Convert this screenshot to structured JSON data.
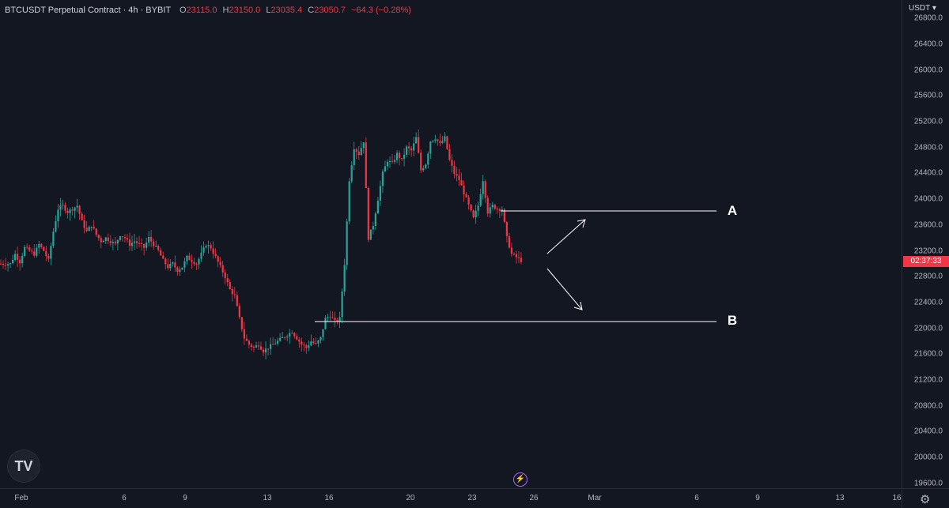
{
  "legend": {
    "symbol": "BTCUSDT Perpetual Contract · 4h · BYBIT",
    "o_key": "O",
    "o_val": "23115.0",
    "h_key": "H",
    "h_val": "23150.0",
    "l_key": "L",
    "l_val": "23035.4",
    "c_key": "C",
    "c_val": "23050.7",
    "change": "−64.3 (−0.28%)"
  },
  "price_axis": {
    "currency": "USDT ▾",
    "ticks": [
      "26800.0",
      "26400.0",
      "26000.0",
      "25600.0",
      "25200.0",
      "24800.0",
      "24400.0",
      "24000.0",
      "23600.0",
      "23200.0",
      "22800.0",
      "22400.0",
      "22000.0",
      "21600.0",
      "21200.0",
      "20800.0",
      "20400.0",
      "20000.0",
      "19600.0"
    ],
    "countdown": "02:37:33"
  },
  "time_axis": {
    "labels": [
      "Feb",
      "6",
      "9",
      "13",
      "16",
      "20",
      "23",
      "26",
      "Mar",
      "6",
      "9",
      "13",
      "16"
    ]
  },
  "annotations": {
    "a_label": "A",
    "b_label": "B"
  },
  "icons": {
    "logo": "tradingview-logo",
    "bolt": "lightning-icon",
    "settings": "gear-icon"
  },
  "colors": {
    "up": "#26a69a",
    "down": "#f23645",
    "background": "#131722"
  },
  "chart_data": {
    "type": "candlestick",
    "symbol": "BTCUSDT",
    "interval": "4h",
    "y_range": [
      19500,
      26900
    ],
    "levels": {
      "A": 23840,
      "B": 22130
    },
    "close_path": [
      [
        0,
        23000
      ],
      [
        4,
        23000
      ],
      [
        6,
        23150
      ],
      [
        8,
        23030
      ],
      [
        10,
        23250
      ],
      [
        12,
        23200
      ],
      [
        14,
        23150
      ],
      [
        16,
        23300
      ],
      [
        18,
        23200
      ],
      [
        20,
        23050
      ],
      [
        22,
        23500
      ],
      [
        24,
        23850
      ],
      [
        26,
        23900
      ],
      [
        28,
        23800
      ],
      [
        30,
        23850
      ],
      [
        32,
        23900
      ],
      [
        34,
        23650
      ],
      [
        36,
        23500
      ],
      [
        38,
        23600
      ],
      [
        40,
        23450
      ],
      [
        42,
        23350
      ],
      [
        44,
        23400
      ],
      [
        46,
        23350
      ],
      [
        48,
        23300
      ],
      [
        50,
        23450
      ],
      [
        52,
        23400
      ],
      [
        54,
        23300
      ],
      [
        56,
        23350
      ],
      [
        58,
        23300
      ],
      [
        60,
        23250
      ],
      [
        62,
        23400
      ],
      [
        64,
        23300
      ],
      [
        66,
        23200
      ],
      [
        68,
        23050
      ],
      [
        70,
        22950
      ],
      [
        72,
        23000
      ],
      [
        74,
        22900
      ],
      [
        76,
        22950
      ],
      [
        78,
        23100
      ],
      [
        80,
        23050
      ],
      [
        82,
        23000
      ],
      [
        84,
        23150
      ],
      [
        86,
        23300
      ],
      [
        88,
        23250
      ],
      [
        90,
        23100
      ],
      [
        92,
        22950
      ],
      [
        94,
        22800
      ],
      [
        96,
        22600
      ],
      [
        98,
        22500
      ],
      [
        100,
        22150
      ],
      [
        102,
        21850
      ],
      [
        104,
        21750
      ],
      [
        106,
        21700
      ],
      [
        108,
        21750
      ],
      [
        110,
        21650
      ],
      [
        112,
        21700
      ],
      [
        114,
        21750
      ],
      [
        116,
        21800
      ],
      [
        118,
        21850
      ],
      [
        120,
        21900
      ],
      [
        122,
        21950
      ],
      [
        124,
        21850
      ],
      [
        126,
        21750
      ],
      [
        128,
        21700
      ],
      [
        130,
        21800
      ],
      [
        132,
        21750
      ],
      [
        134,
        21850
      ],
      [
        136,
        22150
      ],
      [
        138,
        22200
      ],
      [
        140,
        22100
      ],
      [
        142,
        22150
      ],
      [
        144,
        23000
      ],
      [
        146,
        24300
      ],
      [
        148,
        24800
      ],
      [
        150,
        24700
      ],
      [
        152,
        24900
      ],
      [
        154,
        23400
      ],
      [
        156,
        23600
      ],
      [
        158,
        24000
      ],
      [
        160,
        24400
      ],
      [
        162,
        24600
      ],
      [
        164,
        24550
      ],
      [
        166,
        24700
      ],
      [
        168,
        24600
      ],
      [
        170,
        24800
      ],
      [
        172,
        24750
      ],
      [
        174,
        24950
      ],
      [
        176,
        24450
      ],
      [
        178,
        24550
      ],
      [
        180,
        24900
      ],
      [
        182,
        24950
      ],
      [
        184,
        24850
      ],
      [
        186,
        24950
      ],
      [
        188,
        24600
      ],
      [
        190,
        24400
      ],
      [
        192,
        24300
      ],
      [
        194,
        24100
      ],
      [
        196,
        23900
      ],
      [
        198,
        23700
      ],
      [
        200,
        23900
      ],
      [
        202,
        24300
      ],
      [
        204,
        23800
      ],
      [
        206,
        23900
      ],
      [
        208,
        23850
      ],
      [
        210,
        23850
      ],
      [
        212,
        23400
      ],
      [
        214,
        23150
      ],
      [
        216,
        23100
      ],
      [
        218,
        23050
      ]
    ]
  }
}
